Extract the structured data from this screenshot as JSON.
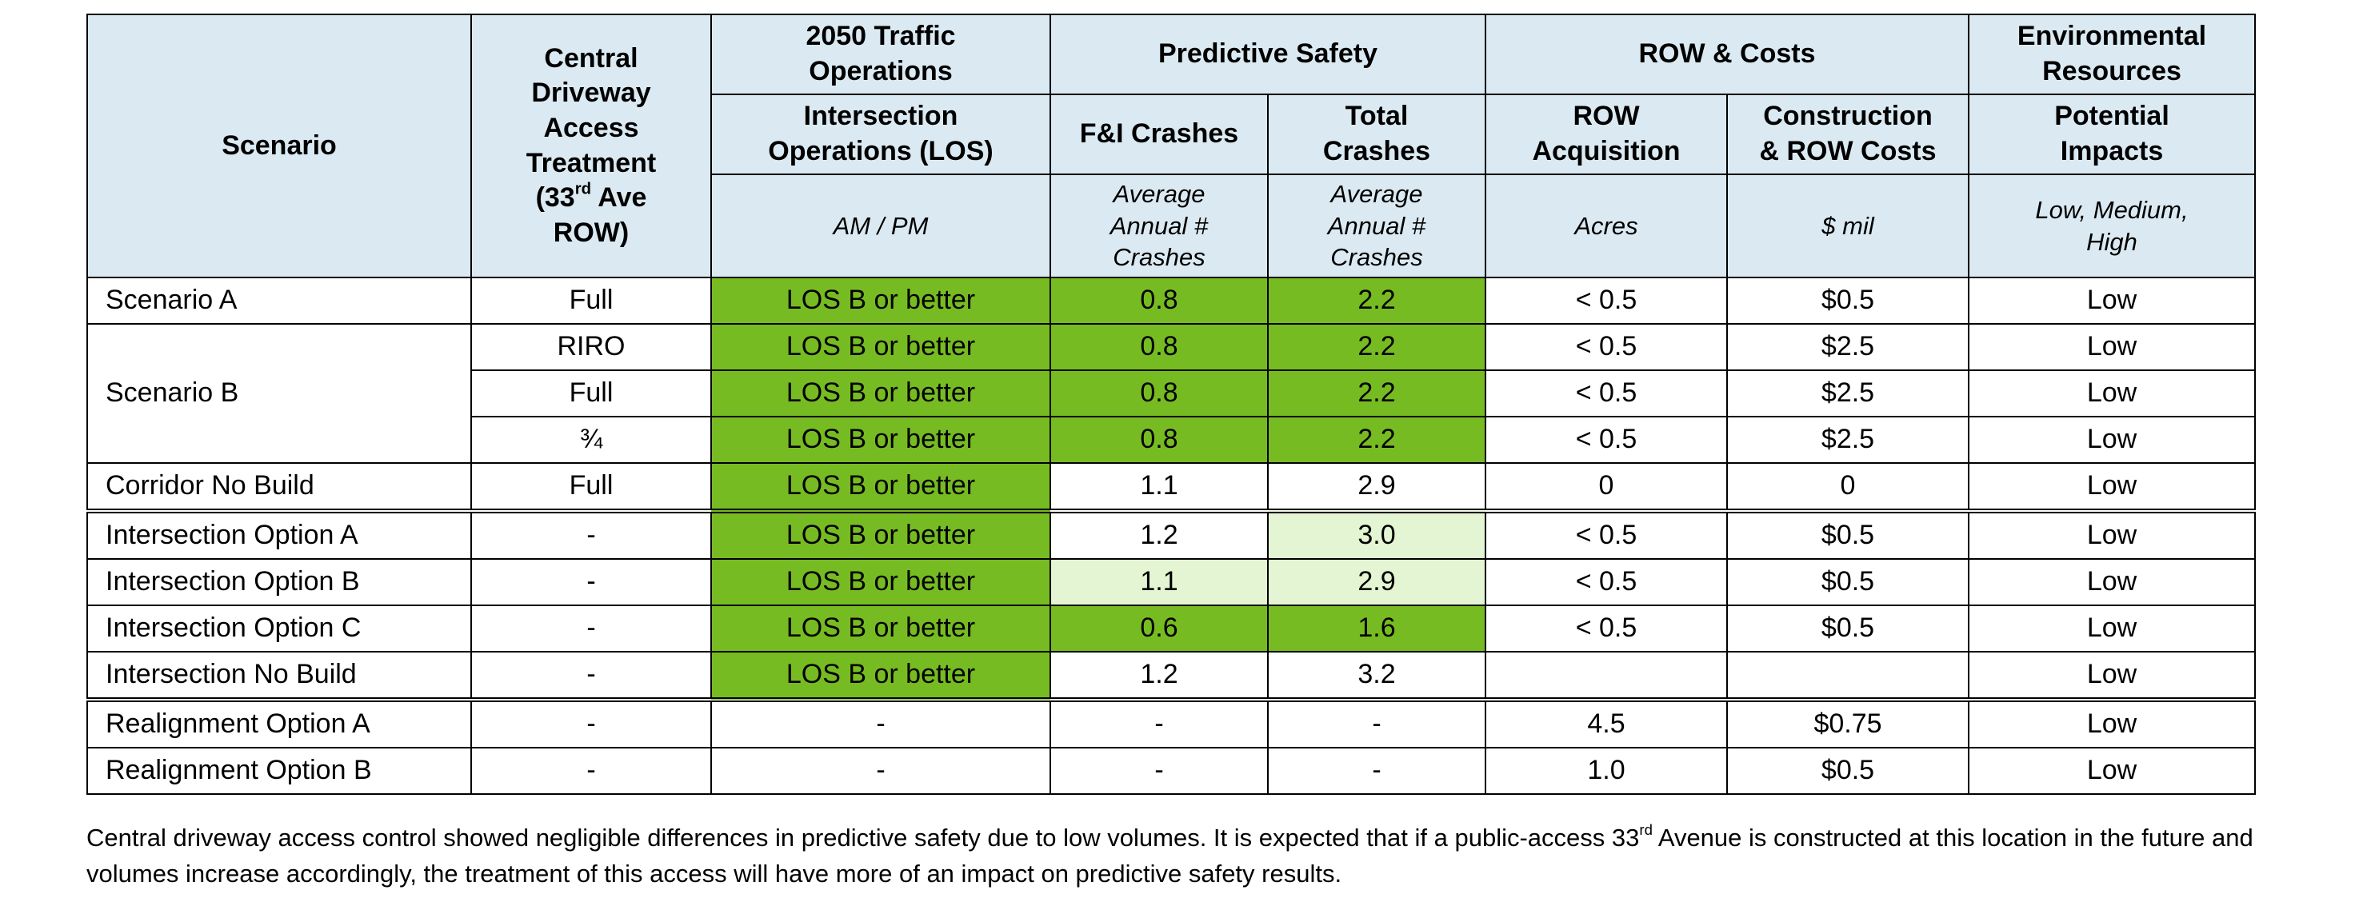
{
  "headers": {
    "scenario": "Scenario",
    "driveway": {
      "line1": "Central",
      "line2": "Driveway",
      "line3": "Access",
      "line4": "Treatment",
      "line5_pre": "(33",
      "line5_sup": "rd",
      "line5_post": " Ave",
      "line6": "ROW)"
    },
    "traffic_group": {
      "line1": "2050 Traffic",
      "line2": "Operations"
    },
    "safety_group": "Predictive Safety",
    "row_costs_group": "ROW & Costs",
    "env_group": {
      "line1": "Environmental",
      "line2": "Resources"
    },
    "intersection_ops": {
      "line1": "Intersection",
      "line2": "Operations (LOS)"
    },
    "fi_crashes": "F&I Crashes",
    "total_crashes": {
      "line1": "Total",
      "line2": "Crashes"
    },
    "row_acq": {
      "line1": "ROW",
      "line2": "Acquisition"
    },
    "construction": {
      "line1": "Construction",
      "line2": "& ROW Costs"
    },
    "potential": {
      "line1": "Potential",
      "line2": "Impacts"
    },
    "units": {
      "los": "AM / PM",
      "fi": {
        "line1": "Average",
        "line2": "Annual #",
        "line3": "Crashes"
      },
      "total": {
        "line1": "Average",
        "line2": "Annual #",
        "line3": "Crashes"
      },
      "acres": "Acres",
      "cost": "$ mil",
      "env": {
        "line1": "Low, Medium,",
        "line2": "High"
      }
    }
  },
  "rows": [
    {
      "scenario": "Scenario A",
      "access": "Full",
      "los": "LOS B or better",
      "fi": "0.8",
      "total": "2.2",
      "row": "< 0.5",
      "cost": "$0.5",
      "env": "Low"
    },
    {
      "scenario": "Scenario B",
      "access": "RIRO",
      "los": "LOS B or better",
      "fi": "0.8",
      "total": "2.2",
      "row": "< 0.5",
      "cost": "$2.5",
      "env": "Low"
    },
    {
      "access": "Full",
      "los": "LOS B or better",
      "fi": "0.8",
      "total": "2.2",
      "row": "< 0.5",
      "cost": "$2.5",
      "env": "Low"
    },
    {
      "access": "¾",
      "los": "LOS B or better",
      "fi": "0.8",
      "total": "2.2",
      "row": "< 0.5",
      "cost": "$2.5",
      "env": "Low"
    },
    {
      "scenario": "Corridor No Build",
      "access": "Full",
      "los": "LOS B or better",
      "fi": "1.1",
      "total": "2.9",
      "row": "0",
      "cost": "0",
      "env": "Low"
    },
    {
      "scenario": "Intersection Option A",
      "access": "-",
      "los": "LOS B or better",
      "fi": "1.2",
      "total": "3.0",
      "row": "< 0.5",
      "cost": "$0.5",
      "env": "Low"
    },
    {
      "scenario": "Intersection Option B",
      "access": "-",
      "los": "LOS B or better",
      "fi": "1.1",
      "total": "2.9",
      "row": "< 0.5",
      "cost": "$0.5",
      "env": "Low"
    },
    {
      "scenario": "Intersection Option C",
      "access": "-",
      "los": "LOS B or better",
      "fi": "0.6",
      "total": "1.6",
      "row": "< 0.5",
      "cost": "$0.5",
      "env": "Low"
    },
    {
      "scenario": "Intersection No Build",
      "access": "-",
      "los": "LOS B or better",
      "fi": "1.2",
      "total": "3.2",
      "row": "",
      "cost": "",
      "env": "Low"
    },
    {
      "scenario": "Realignment Option A",
      "access": "-",
      "los": "-",
      "fi": "-",
      "total": "-",
      "row": "4.5",
      "cost": "$0.75",
      "env": "Low"
    },
    {
      "scenario": "Realignment Option B",
      "access": "-",
      "los": "-",
      "fi": "-",
      "total": "-",
      "row": "1.0",
      "cost": "$0.5",
      "env": "Low"
    }
  ],
  "footnote": {
    "pre": "Central driveway access control showed negligible differences in predictive safety due to low volumes.  It is expected that if a public-access 33",
    "sup": "rd",
    "post": " Avenue is constructed at this location in the future and volumes increase accordingly, the treatment of this access will have more of an impact on predictive safety results."
  },
  "colors": {
    "header_bg": "#dbeaf2",
    "highlight_dark_green": "#77bb22",
    "highlight_light_green": "#e3f5d2",
    "border": "#000000"
  }
}
